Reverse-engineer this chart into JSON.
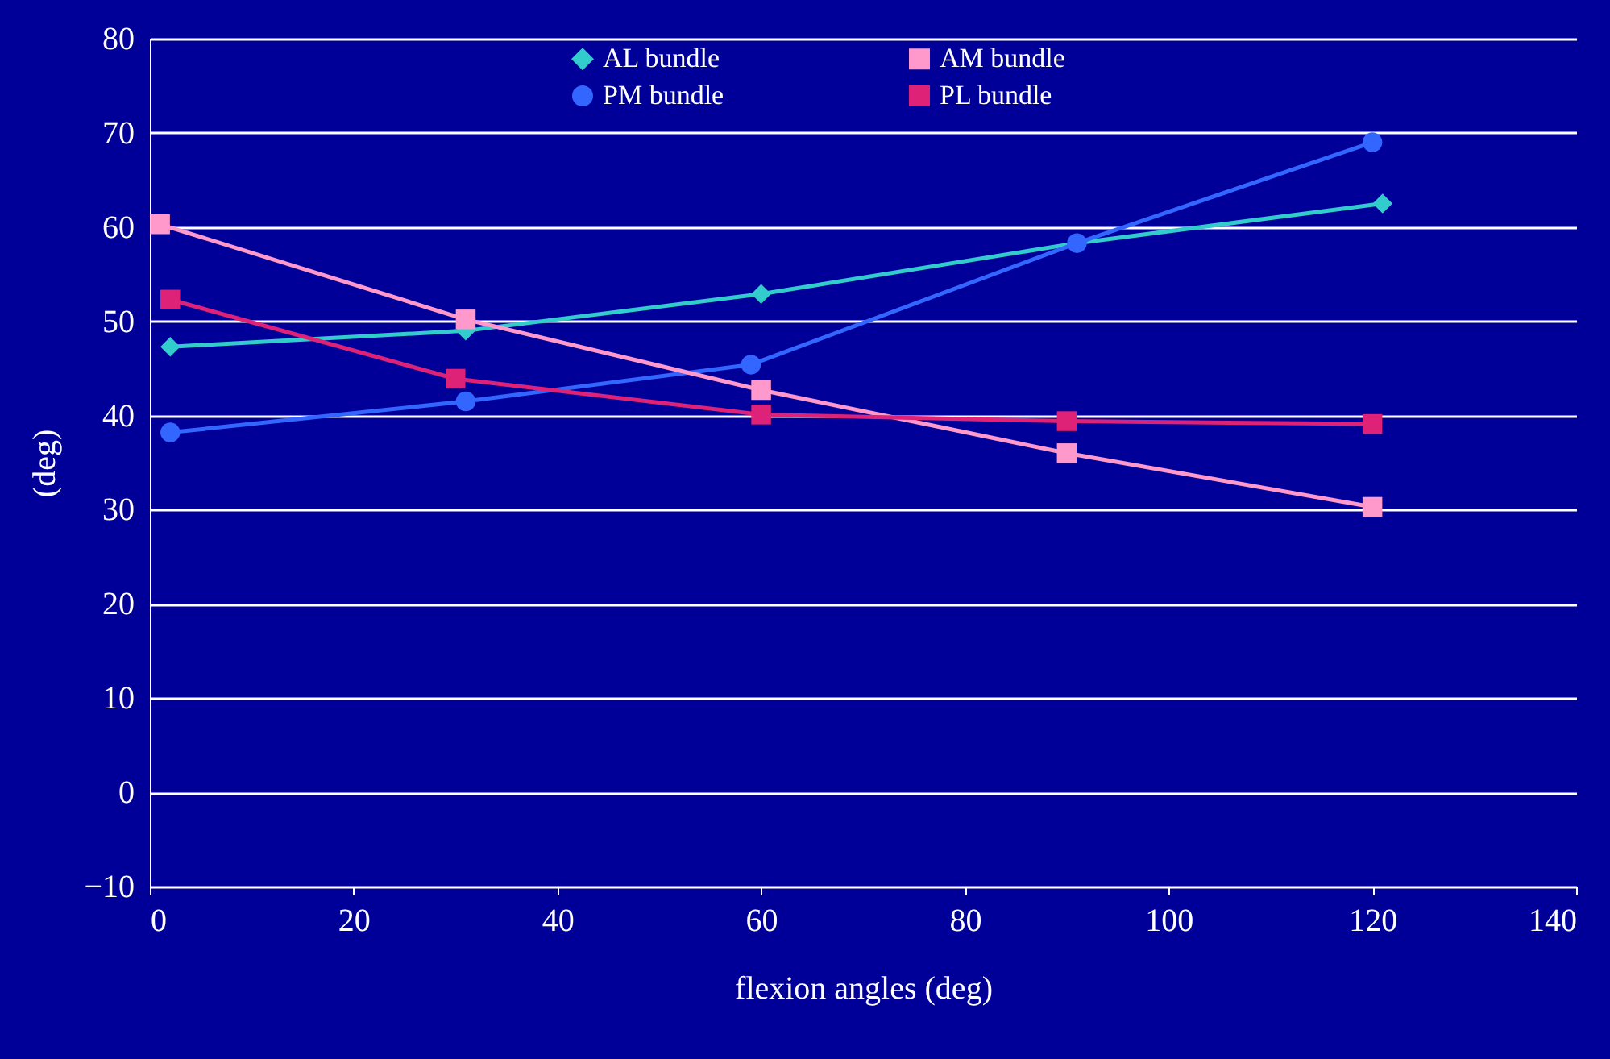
{
  "chart_data": {
    "type": "line",
    "xlabel": "flexion angles (deg)",
    "ylabel": "(deg)",
    "xlim": [
      0,
      140
    ],
    "xticks": [
      0,
      20,
      40,
      60,
      80,
      100,
      120,
      140
    ],
    "ylim": [
      -10,
      80
    ],
    "yticks": [
      -10,
      0,
      10,
      20,
      30,
      40,
      50,
      60,
      70,
      80
    ],
    "grid": "y",
    "legend": "top",
    "series": [
      {
        "name": "AL bundle",
        "color": "#33cccc",
        "marker": "diamond",
        "x": [
          2,
          31,
          60,
          91,
          121
        ],
        "values": [
          47.3,
          49,
          52.9,
          58.3,
          62.5
        ]
      },
      {
        "name": "PM bundle",
        "color": "#3366ff",
        "marker": "circle",
        "x": [
          2,
          31,
          59,
          91,
          120
        ],
        "values": [
          38.2,
          41.5,
          45.4,
          58.3,
          69
        ]
      },
      {
        "name": "AM bundle",
        "color": "#ff99cc",
        "marker": "square",
        "x": [
          1,
          31,
          60,
          90,
          120
        ],
        "values": [
          60.3,
          50.2,
          42.7,
          36,
          30.3
        ]
      },
      {
        "name": "PL bundle",
        "color": "#dd2277",
        "marker": "square",
        "x": [
          2,
          30,
          60,
          90,
          120
        ],
        "values": [
          52.3,
          43.9,
          40.1,
          39.4,
          39.1
        ]
      }
    ]
  }
}
